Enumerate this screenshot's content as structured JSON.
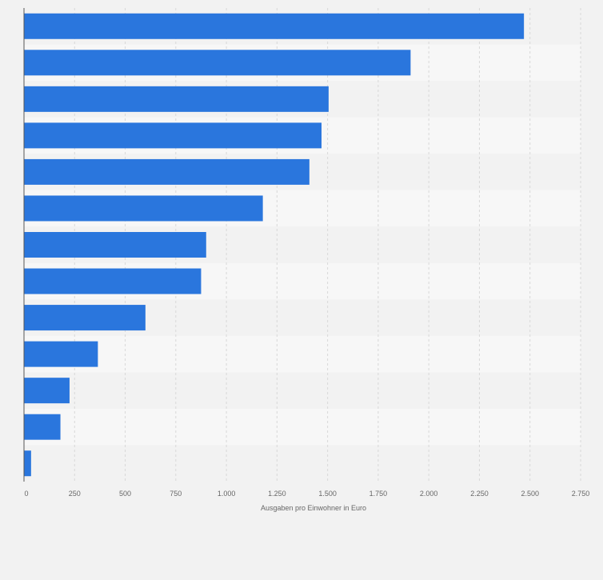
{
  "chart_data": {
    "type": "bar",
    "orientation": "horizontal",
    "categories": [
      "",
      "",
      "",
      "",
      "",
      "",
      "",
      "",
      "",
      "",
      "",
      "",
      ""
    ],
    "values": [
      2470,
      1910,
      1505,
      1470,
      1410,
      1180,
      900,
      875,
      600,
      365,
      225,
      180,
      35
    ],
    "xlabel": "Ausgaben pro Einwohner in Euro",
    "ylabel": "",
    "xlim": [
      0,
      2750
    ],
    "ticks": [
      0,
      250,
      500,
      750,
      1000,
      1250,
      1500,
      1750,
      2000,
      2250,
      2500,
      2750
    ],
    "tick_labels": [
      "0",
      "250",
      "500",
      "750",
      "1.000",
      "1.250",
      "1.500",
      "1.750",
      "2.000",
      "2.250",
      "2.500",
      "2.750"
    ],
    "grid": true,
    "legend": "none",
    "colors": {
      "bar": "#2a76dd",
      "row_light": "#f7f7f7",
      "row_dark": "#f2f2f2",
      "grid": "#d8d8d8",
      "axis": "#555555",
      "text": "#666666"
    }
  }
}
